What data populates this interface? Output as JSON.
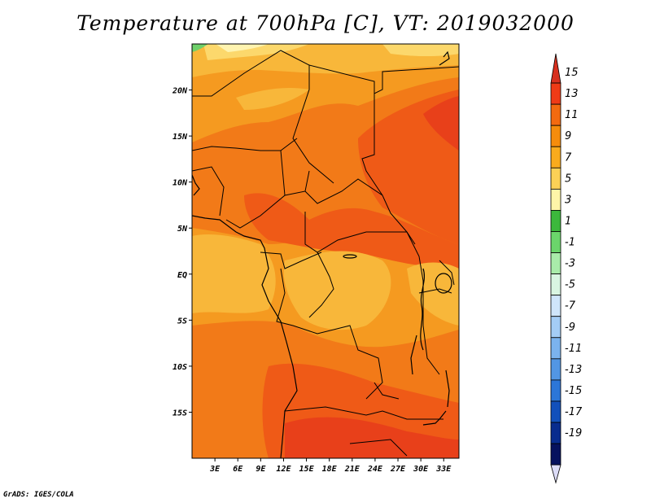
{
  "title": "Temperature at 700hPa [C], VT: 2019032000",
  "credit": "GrADS: IGES/COLA",
  "map": {
    "lon_range": [
      0,
      35
    ],
    "lat_range": [
      -20,
      25
    ],
    "lat_ticks": [
      {
        "value": 20,
        "label": "20N"
      },
      {
        "value": 15,
        "label": "15N"
      },
      {
        "value": 10,
        "label": "10N"
      },
      {
        "value": 5,
        "label": "5N"
      },
      {
        "value": 0,
        "label": "EQ"
      },
      {
        "value": -5,
        "label": "5S"
      },
      {
        "value": -10,
        "label": "10S"
      },
      {
        "value": -15,
        "label": "15S"
      }
    ],
    "lon_ticks": [
      {
        "value": 3,
        "label": "3E"
      },
      {
        "value": 6,
        "label": "6E"
      },
      {
        "value": 9,
        "label": "9E"
      },
      {
        "value": 12,
        "label": "12E"
      },
      {
        "value": 15,
        "label": "15E"
      },
      {
        "value": 18,
        "label": "18E"
      },
      {
        "value": 21,
        "label": "21E"
      },
      {
        "value": 24,
        "label": "24E"
      },
      {
        "value": 27,
        "label": "27E"
      },
      {
        "value": 30,
        "label": "30E"
      },
      {
        "value": 33,
        "label": "33E"
      }
    ]
  },
  "colorbar": {
    "labels": [
      "15",
      "13",
      "11",
      "9",
      "7",
      "5",
      "3",
      "1",
      "-1",
      "-3",
      "-5",
      "-7",
      "-9",
      "-11",
      "-13",
      "-15",
      "-17",
      "-19"
    ],
    "colors_top_to_bottom": [
      "#d7301f",
      "#ef3b17",
      "#f36a10",
      "#f58c0c",
      "#f9ab1d",
      "#fcd156",
      "#fef5a8",
      "#3cb83c",
      "#6bd56b",
      "#a9ebaa",
      "#d9f5e2",
      "#cfe5fb",
      "#a4cdf6",
      "#7bb3ee",
      "#5296e4",
      "#2c76d8",
      "#1250bb",
      "#082c8e",
      "#06125e"
    ],
    "lower_arrow_color": "#dcdcf7"
  },
  "colors": {
    "base": "#f59a20",
    "warm": "#f27a18",
    "hot": "#ef5a17",
    "hottest": "#e8401a",
    "cool": "#f8b73a",
    "coolest": "#fcd86c",
    "pale": "#fff4b0",
    "green": "#6ed06a"
  }
}
